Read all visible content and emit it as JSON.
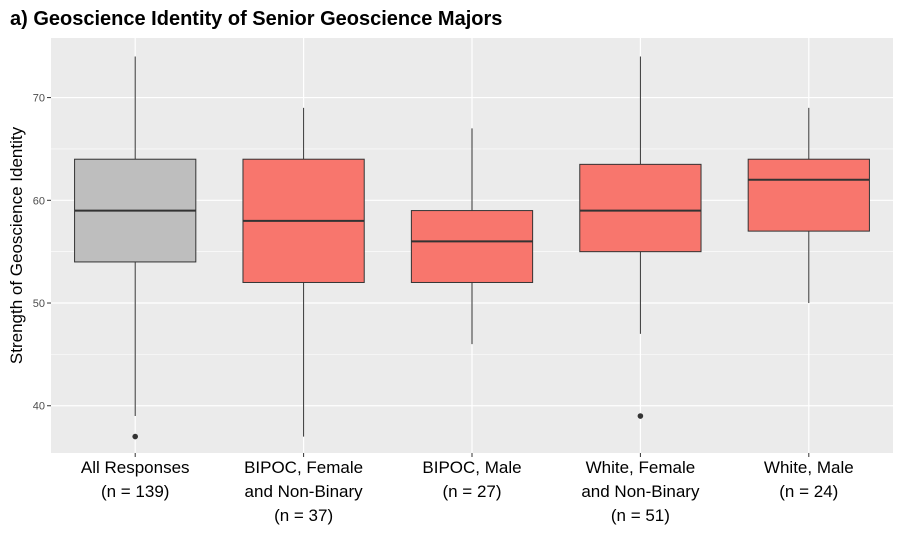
{
  "chart_data": {
    "type": "box",
    "title": "a)  Geoscience Identity of Senior Geoscience Majors",
    "xlabel": "",
    "ylabel": "Strength of Geoscience Identity",
    "ylim": [
      35.4,
      75.8
    ],
    "yticks": [
      40,
      50,
      60,
      70
    ],
    "grid": true,
    "categories": [
      {
        "lines": [
          "All Responses",
          "(n = 139)"
        ]
      },
      {
        "lines": [
          "BIPOC, Female",
          "and Non-Binary",
          "(n = 37)"
        ]
      },
      {
        "lines": [
          "BIPOC, Male",
          "(n = 27)"
        ]
      },
      {
        "lines": [
          "White, Female",
          "and Non-Binary",
          "(n = 51)"
        ]
      },
      {
        "lines": [
          "White, Male",
          "(n = 24)"
        ]
      }
    ],
    "boxes": [
      {
        "q1": 54,
        "median": 59,
        "q3": 64,
        "whisker_low": 39,
        "whisker_high": 74,
        "outliers": [
          37
        ],
        "color": "#bebebe"
      },
      {
        "q1": 52,
        "median": 58,
        "q3": 64,
        "whisker_low": 37,
        "whisker_high": 69,
        "outliers": [],
        "color": "#f8766d"
      },
      {
        "q1": 52,
        "median": 56,
        "q3": 59,
        "whisker_low": 46,
        "whisker_high": 67,
        "outliers": [],
        "color": "#f8766d"
      },
      {
        "q1": 55,
        "median": 59,
        "q3": 63.5,
        "whisker_low": 47,
        "whisker_high": 74,
        "outliers": [
          39
        ],
        "color": "#f8766d"
      },
      {
        "q1": 57,
        "median": 62,
        "q3": 64,
        "whisker_low": 50,
        "whisker_high": 69,
        "outliers": [],
        "color": "#f8766d"
      }
    ],
    "panel_background": "#ebebeb",
    "grid_color": "#ffffff"
  }
}
